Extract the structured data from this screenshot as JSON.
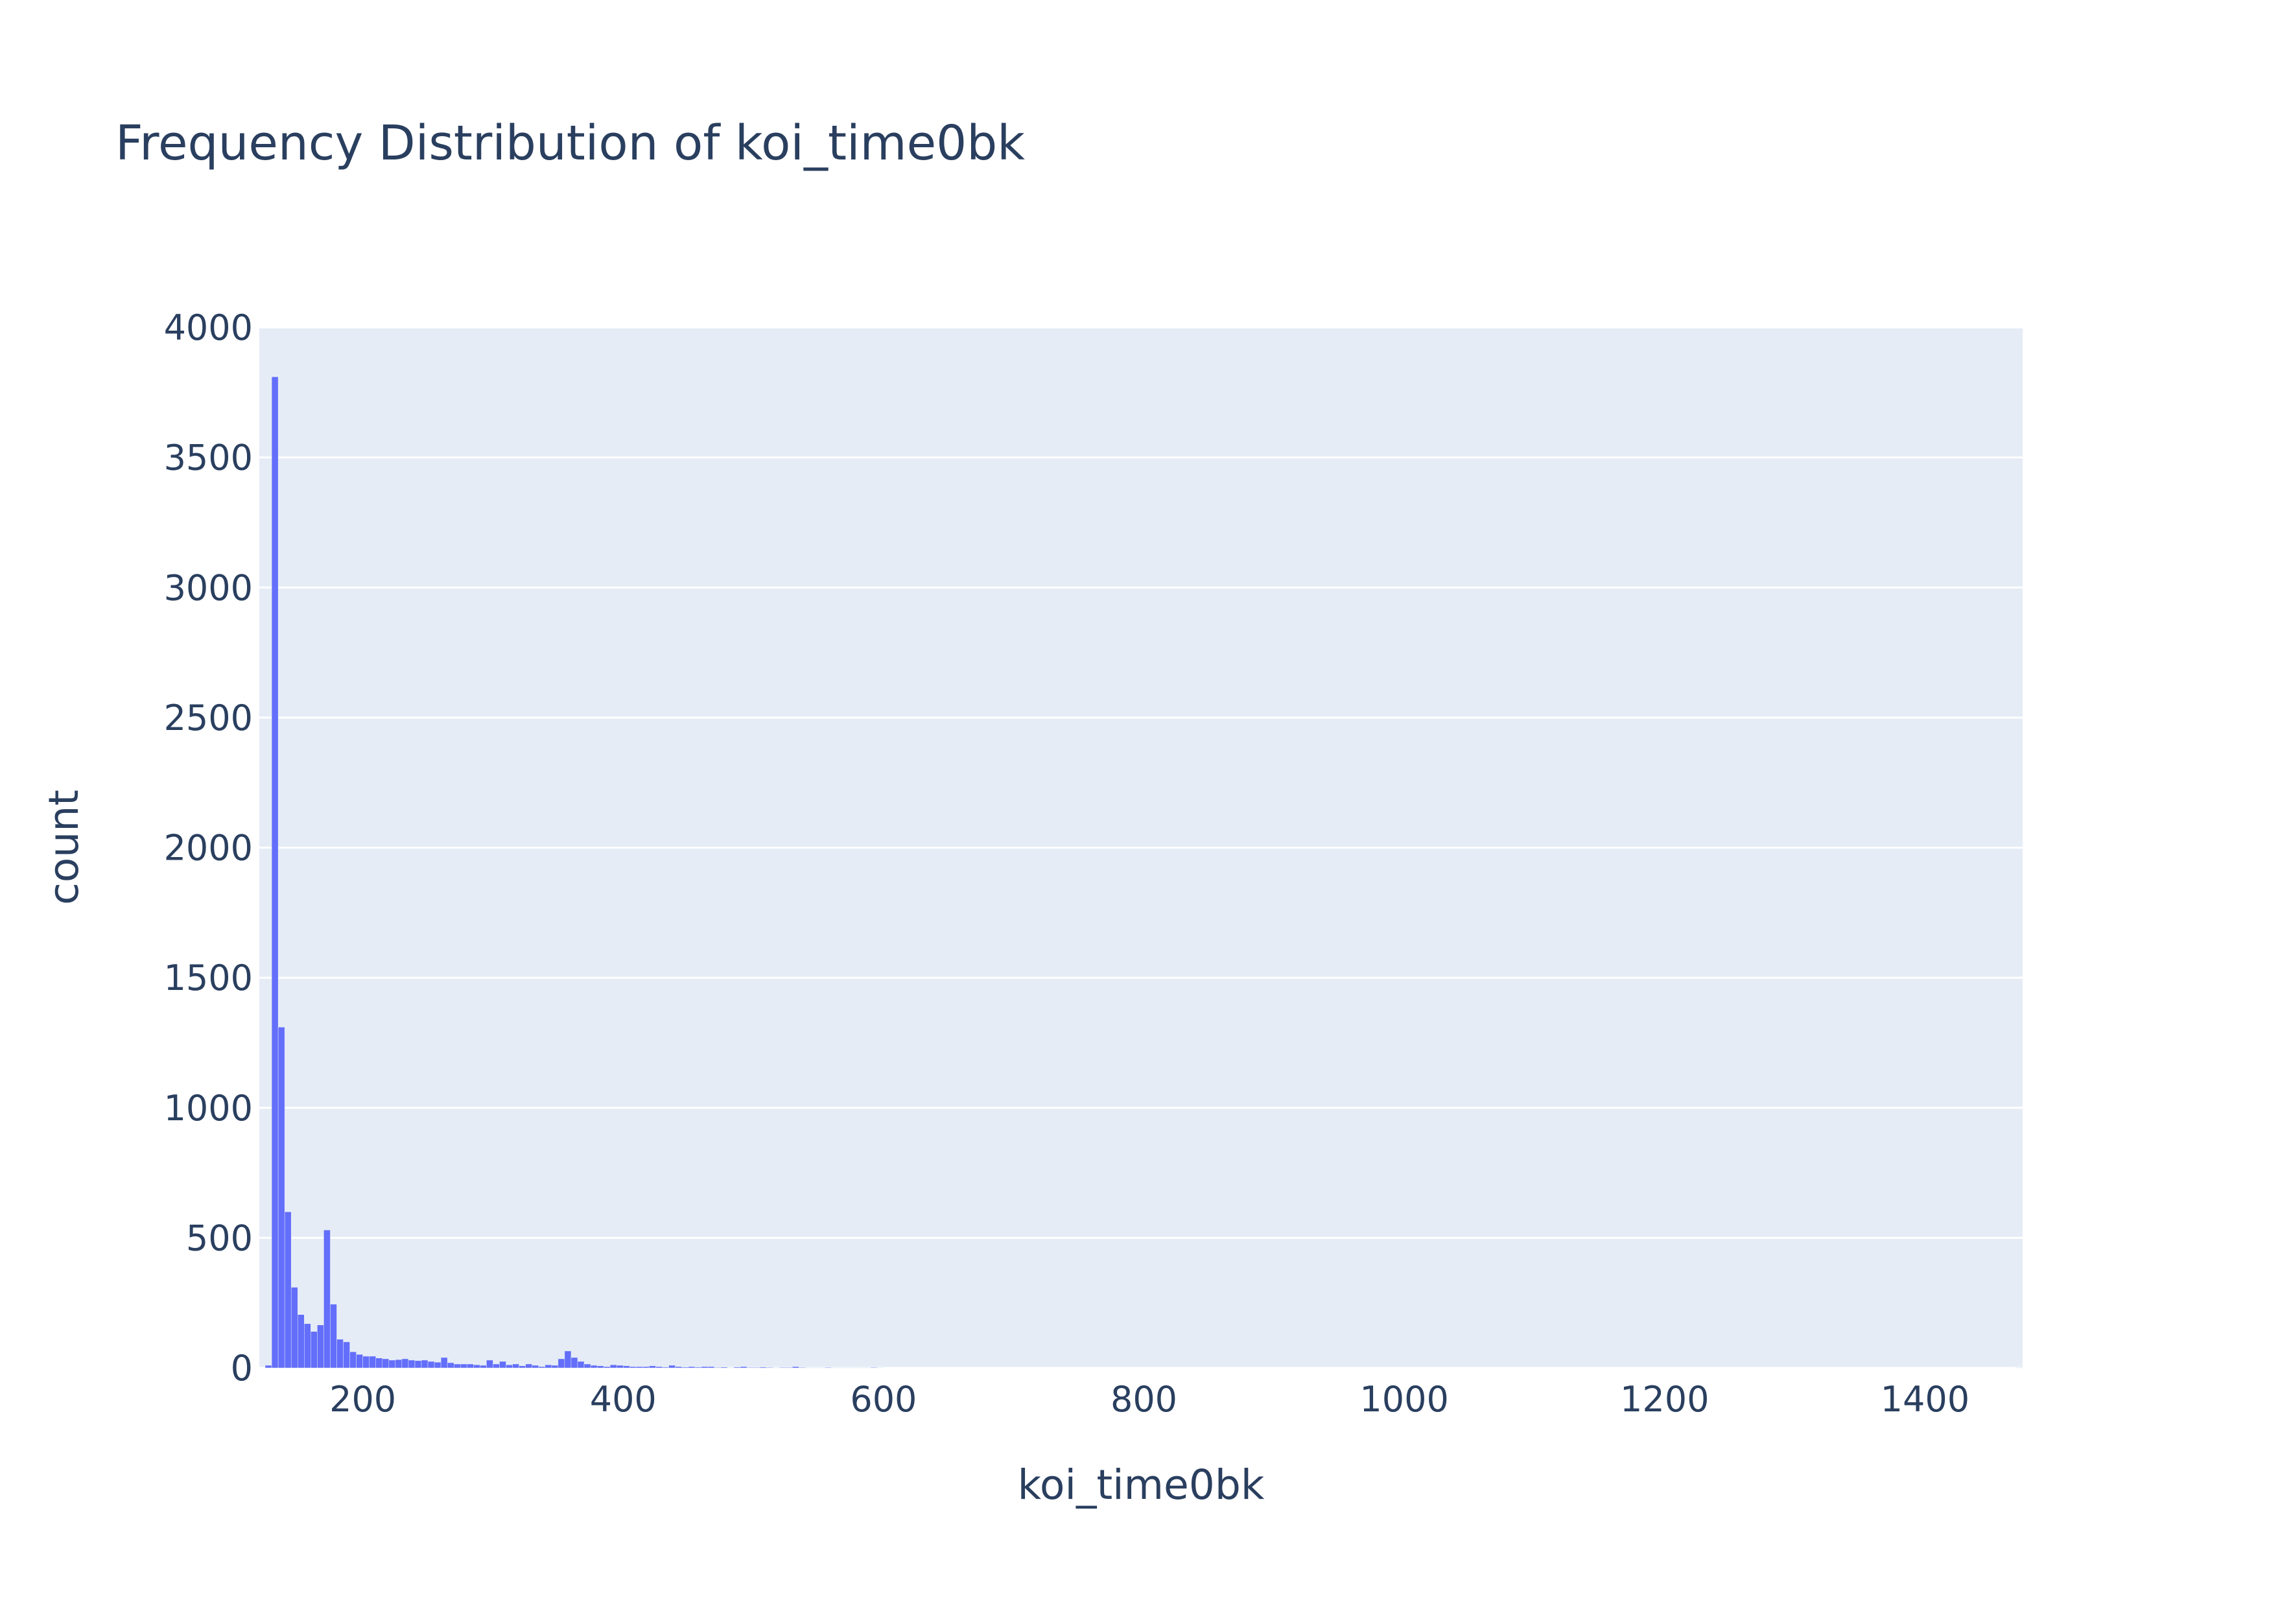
{
  "chart_data": {
    "type": "bar",
    "title": "Frequency Distribution of koi_time0bk",
    "xlabel": "koi_time0bk",
    "ylabel": "count",
    "xlim": [
      120.5,
      1475
    ],
    "ylim": [
      0,
      4000
    ],
    "x_ticks": [
      200,
      400,
      600,
      800,
      1000,
      1200,
      1400
    ],
    "y_ticks": [
      0,
      500,
      1000,
      1500,
      2000,
      2500,
      3000,
      3500,
      4000
    ],
    "bin_width": 5,
    "series": [
      {
        "x": [
          122.5,
          127.5,
          132.5,
          137.5,
          142.5,
          147.5,
          152.5,
          157.5,
          162.5,
          167.5,
          172.5,
          177.5,
          182.5,
          187.5,
          192.5,
          197.5,
          202.5,
          207.5,
          212.5,
          217.5,
          222.5,
          227.5,
          232.5,
          237.5,
          242.5,
          247.5,
          252.5,
          257.5,
          262.5,
          267.5,
          272.5,
          277.5,
          282.5,
          287.5,
          292.5,
          297.5,
          302.5,
          307.5,
          312.5,
          317.5,
          322.5,
          327.5,
          332.5,
          337.5,
          342.5,
          347.5,
          352.5,
          357.5,
          362.5,
          367.5,
          372.5,
          377.5,
          382.5,
          387.5,
          392.5,
          397.5,
          402.5,
          407.5,
          412.5,
          417.5,
          422.5,
          427.5,
          432.5,
          437.5,
          442.5,
          447.5,
          452.5,
          457.5,
          462.5,
          467.5,
          472.5,
          477.5,
          482.5,
          487.5,
          492.5,
          497.5,
          502.5,
          507.5,
          512.5,
          517.5,
          522.5,
          527.5,
          532.5,
          537.5,
          542.5,
          547.5,
          552.5,
          557.5,
          562.5,
          567.5,
          572.5,
          577.5,
          582.5,
          587.5,
          592.5,
          597.5,
          602.5,
          607.5,
          612.5,
          617.5,
          622.5,
          627.5,
          632.5,
          637.5,
          642.5,
          647.5,
          652.5,
          657.5,
          662.5,
          667.5,
          672.5,
          677.5,
          682.5,
          687.5,
          692.5,
          697.5,
          702.5,
          707.5,
          712.5,
          717.5,
          722.5,
          727.5,
          732.5,
          737.5,
          742.5,
          747.5,
          752.5,
          757.5,
          762.5,
          767.5,
          772.5,
          777.5,
          782.5,
          787.5,
          792.5,
          797.5,
          802.5,
          807.5,
          812.5,
          817.5,
          822.5,
          827.5,
          832.5,
          837.5,
          842.5,
          847.5,
          852.5,
          857.5,
          862.5,
          867.5,
          872.5,
          877.5,
          882.5,
          887.5,
          892.5,
          897.5,
          902.5,
          907.5,
          912.5,
          917.5,
          922.5,
          927.5,
          932.5,
          937.5,
          942.5,
          947.5,
          952.5,
          957.5,
          962.5,
          967.5,
          972.5,
          977.5,
          982.5,
          987.5,
          992.5,
          997.5,
          1002.5,
          1007.5,
          1012.5,
          1017.5,
          1022.5,
          1027.5,
          1032.5,
          1037.5,
          1042.5,
          1047.5,
          1052.5,
          1057.5,
          1062.5,
          1067.5,
          1072.5,
          1077.5,
          1082.5,
          1087.5,
          1092.5,
          1097.5,
          1102.5,
          1107.5,
          1112.5,
          1117.5,
          1122.5,
          1127.5,
          1132.5,
          1137.5,
          1142.5,
          1147.5,
          1152.5,
          1157.5,
          1162.5,
          1167.5,
          1172.5,
          1177.5,
          1182.5,
          1187.5,
          1192.5,
          1197.5,
          1202.5,
          1207.5,
          1212.5,
          1217.5,
          1222.5,
          1227.5,
          1232.5,
          1237.5,
          1242.5,
          1247.5,
          1252.5,
          1257.5,
          1262.5,
          1267.5,
          1272.5,
          1277.5,
          1282.5,
          1287.5,
          1292.5,
          1297.5,
          1302.5,
          1307.5,
          1312.5,
          1317.5,
          1322.5,
          1327.5,
          1332.5,
          1337.5,
          1342.5,
          1347.5,
          1352.5,
          1357.5,
          1362.5,
          1367.5,
          1372.5,
          1377.5,
          1382.5,
          1387.5,
          1392.5,
          1397.5,
          1402.5,
          1407.5,
          1412.5,
          1417.5,
          1422.5,
          1427.5,
          1432.5,
          1437.5,
          1442.5,
          1447.5,
          1452.5,
          1457.5,
          1462.5,
          1467.5,
          1472.5
        ],
        "values": [
          0,
          10,
          3810,
          1310,
          600,
          310,
          205,
          170,
          140,
          165,
          530,
          245,
          110,
          100,
          62,
          52,
          45,
          45,
          38,
          35,
          30,
          32,
          35,
          30,
          28,
          30,
          25,
          22,
          40,
          20,
          15,
          15,
          15,
          12,
          10,
          30,
          15,
          25,
          12,
          15,
          8,
          15,
          10,
          5,
          12,
          10,
          35,
          65,
          40,
          25,
          15,
          10,
          8,
          5,
          12,
          10,
          8,
          5,
          5,
          5,
          8,
          5,
          3,
          10,
          5,
          3,
          5,
          3,
          5,
          5,
          2,
          3,
          1,
          3,
          5,
          2,
          2,
          3,
          2,
          1,
          2,
          2,
          5,
          2,
          1,
          1,
          1,
          2,
          1,
          1,
          1,
          1,
          1,
          1,
          2,
          1,
          0,
          0,
          0,
          0,
          0,
          0,
          0,
          0,
          0,
          0,
          0,
          0,
          0,
          0,
          0,
          0,
          0,
          0,
          0,
          0,
          0,
          0,
          0,
          0,
          0,
          0,
          0,
          0,
          0,
          0,
          0,
          0,
          0,
          0,
          0,
          0,
          0,
          0,
          0,
          0,
          0,
          0,
          0,
          0,
          0,
          0,
          0,
          0,
          0,
          0,
          0,
          0,
          0,
          0,
          0,
          0,
          0,
          0,
          0,
          0,
          0,
          0,
          0,
          0,
          0,
          0,
          0,
          0,
          0,
          0,
          0,
          0,
          0,
          0,
          0,
          0,
          0,
          0,
          0,
          0,
          0,
          0,
          0,
          0,
          0,
          0,
          0,
          0,
          0,
          0,
          0,
          0,
          0,
          0,
          0,
          0,
          0,
          0,
          0,
          0,
          0,
          0,
          0,
          0,
          0,
          0,
          0,
          0,
          0,
          0,
          0,
          0,
          0,
          0,
          0,
          0,
          0,
          0,
          0,
          0,
          0,
          0,
          0,
          0,
          0,
          0,
          0,
          0,
          0,
          0,
          0,
          0,
          0,
          0,
          0,
          0,
          0,
          0,
          0,
          0,
          0,
          0,
          0,
          0,
          0,
          0,
          0,
          0,
          0,
          0,
          0,
          0,
          0,
          0,
          0,
          0,
          0,
          0,
          0,
          0,
          0,
          0,
          0,
          0,
          0,
          0,
          0,
          0,
          0,
          0,
          0,
          0,
          0,
          0,
          1
        ]
      }
    ],
    "grid": true,
    "colors": {
      "bar": "#636efa",
      "plot_background": "#e5ecf6",
      "grid": "#ffffff",
      "text": "#2a3f5f",
      "page_background": "#ffffff"
    }
  }
}
